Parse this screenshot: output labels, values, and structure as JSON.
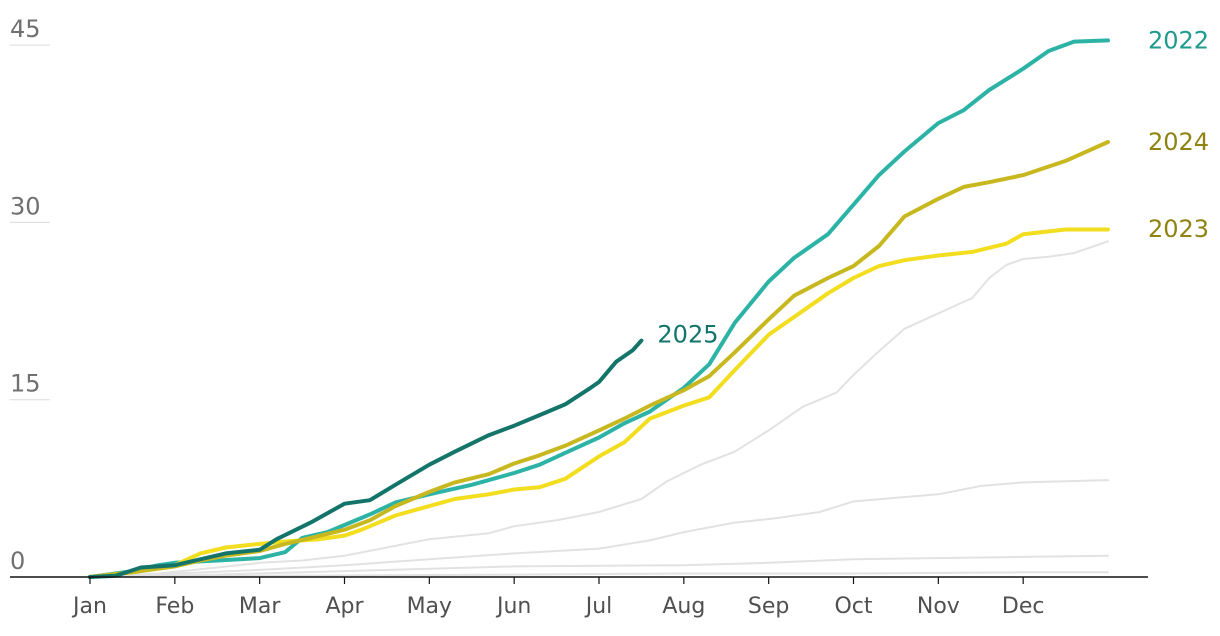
{
  "chart_data": {
    "type": "line",
    "x_categories": [
      "Jan",
      "Feb",
      "Mar",
      "Apr",
      "May",
      "Jun",
      "Jul",
      "Aug",
      "Sep",
      "Oct",
      "Nov",
      "Dec"
    ],
    "y_ticks": [
      {
        "value": 0,
        "label": "0"
      },
      {
        "value": 15,
        "label": "15"
      },
      {
        "value": 30,
        "label": "30"
      },
      {
        "value": 45,
        "label": "45"
      }
    ],
    "ylim": [
      0,
      47
    ],
    "series": [
      {
        "name": "",
        "color": "#e2e2e2",
        "values": [
          [
            0.0,
            0
          ],
          [
            2.0,
            0.1
          ],
          [
            5.0,
            0.2
          ],
          [
            7.0,
            0.3
          ],
          [
            9.0,
            0.3
          ],
          [
            11.0,
            0.4
          ],
          [
            12.0,
            0.4
          ]
        ]
      },
      {
        "name": "",
        "color": "#e2e2e2",
        "values": [
          [
            0.0,
            0
          ],
          [
            1.5,
            0.2
          ],
          [
            3.0,
            0.5
          ],
          [
            5.0,
            0.9
          ],
          [
            7.0,
            1.0
          ],
          [
            8.0,
            1.2
          ],
          [
            9.0,
            1.5
          ],
          [
            11.0,
            1.7
          ],
          [
            12.0,
            1.8
          ]
        ]
      },
      {
        "name": "",
        "color": "#e2e2e2",
        "values": [
          [
            0.0,
            0
          ],
          [
            1.0,
            0.3
          ],
          [
            2.0,
            0.6
          ],
          [
            3.0,
            1.0
          ],
          [
            4.0,
            1.5
          ],
          [
            5.0,
            2.0
          ],
          [
            6.0,
            2.4
          ],
          [
            6.6,
            3.1
          ],
          [
            7.0,
            3.8
          ],
          [
            7.6,
            4.6
          ],
          [
            8.0,
            4.9
          ],
          [
            8.6,
            5.5
          ],
          [
            9.0,
            6.4
          ],
          [
            10.0,
            7.0
          ],
          [
            10.5,
            7.7
          ],
          [
            11.0,
            8.0
          ],
          [
            12.0,
            8.2
          ]
        ]
      },
      {
        "name": "",
        "color": "#e2e2e2",
        "values": [
          [
            0.0,
            0
          ],
          [
            0.8,
            0.3
          ],
          [
            1.5,
            0.8
          ],
          [
            2.0,
            1.2
          ],
          [
            2.5,
            1.4
          ],
          [
            3.0,
            1.8
          ],
          [
            3.5,
            2.5
          ],
          [
            4.0,
            3.2
          ],
          [
            4.7,
            3.7
          ],
          [
            5.0,
            4.3
          ],
          [
            5.5,
            4.8
          ],
          [
            6.0,
            5.5
          ],
          [
            6.5,
            6.6
          ],
          [
            6.8,
            8.1
          ],
          [
            7.0,
            8.8
          ],
          [
            7.2,
            9.5
          ],
          [
            7.6,
            10.6
          ],
          [
            8.0,
            12.4
          ],
          [
            8.4,
            14.4
          ],
          [
            8.8,
            15.6
          ],
          [
            9.0,
            17.1
          ],
          [
            9.3,
            19.1
          ],
          [
            9.6,
            21.0
          ],
          [
            10.0,
            22.3
          ],
          [
            10.4,
            23.6
          ],
          [
            10.6,
            25.3
          ],
          [
            10.8,
            26.4
          ],
          [
            11.0,
            26.9
          ],
          [
            11.3,
            27.1
          ],
          [
            11.6,
            27.4
          ],
          [
            12.0,
            28.4
          ]
        ]
      },
      {
        "name": "2022",
        "color": "#2db3a6",
        "values": [
          [
            0.0,
            0
          ],
          [
            0.5,
            0.5
          ],
          [
            0.8,
            1.0
          ],
          [
            1.0,
            1.2
          ],
          [
            1.5,
            1.4
          ],
          [
            2.0,
            1.6
          ],
          [
            2.3,
            2.1
          ],
          [
            2.5,
            3.3
          ],
          [
            2.8,
            3.8
          ],
          [
            3.0,
            4.4
          ],
          [
            3.3,
            5.3
          ],
          [
            3.6,
            6.3
          ],
          [
            4.0,
            7.0
          ],
          [
            4.5,
            7.8
          ],
          [
            5.0,
            8.8
          ],
          [
            5.3,
            9.5
          ],
          [
            5.6,
            10.5
          ],
          [
            6.0,
            11.8
          ],
          [
            6.3,
            13.0
          ],
          [
            6.6,
            14.0
          ],
          [
            7.0,
            16.0
          ],
          [
            7.3,
            18.0
          ],
          [
            7.6,
            21.5
          ],
          [
            8.0,
            25.0
          ],
          [
            8.3,
            27.0
          ],
          [
            8.7,
            29.0
          ],
          [
            9.0,
            31.5
          ],
          [
            9.3,
            34.0
          ],
          [
            9.6,
            36.0
          ],
          [
            10.0,
            38.4
          ],
          [
            10.3,
            39.5
          ],
          [
            10.6,
            41.2
          ],
          [
            11.0,
            43.0
          ],
          [
            11.3,
            44.5
          ],
          [
            11.6,
            45.3
          ],
          [
            12.0,
            45.4
          ]
        ]
      },
      {
        "name": "2023",
        "color": "#f3dd1f",
        "values": [
          [
            0.0,
            0
          ],
          [
            0.5,
            0.4
          ],
          [
            1.0,
            1.0
          ],
          [
            1.3,
            2.0
          ],
          [
            1.6,
            2.5
          ],
          [
            2.0,
            2.8
          ],
          [
            2.3,
            3.0
          ],
          [
            2.7,
            3.2
          ],
          [
            3.0,
            3.5
          ],
          [
            3.2,
            4.0
          ],
          [
            3.6,
            5.2
          ],
          [
            4.0,
            6.0
          ],
          [
            4.3,
            6.6
          ],
          [
            4.7,
            7.0
          ],
          [
            5.0,
            7.4
          ],
          [
            5.3,
            7.6
          ],
          [
            5.6,
            8.3
          ],
          [
            6.0,
            10.2
          ],
          [
            6.3,
            11.4
          ],
          [
            6.6,
            13.4
          ],
          [
            7.0,
            14.5
          ],
          [
            7.3,
            15.2
          ],
          [
            7.6,
            17.5
          ],
          [
            8.0,
            20.5
          ],
          [
            8.3,
            22.0
          ],
          [
            8.7,
            24.0
          ],
          [
            9.0,
            25.3
          ],
          [
            9.3,
            26.3
          ],
          [
            9.6,
            26.8
          ],
          [
            10.0,
            27.2
          ],
          [
            10.4,
            27.5
          ],
          [
            10.8,
            28.2
          ],
          [
            11.0,
            29.0
          ],
          [
            11.5,
            29.4
          ],
          [
            12.0,
            29.4
          ]
        ]
      },
      {
        "name": "2024",
        "color": "#c8b81f",
        "values": [
          [
            0.0,
            0
          ],
          [
            0.5,
            0.4
          ],
          [
            1.0,
            0.9
          ],
          [
            1.3,
            1.4
          ],
          [
            1.6,
            1.8
          ],
          [
            2.0,
            2.2
          ],
          [
            2.3,
            2.8
          ],
          [
            2.6,
            3.3
          ],
          [
            3.0,
            4.0
          ],
          [
            3.3,
            4.8
          ],
          [
            3.6,
            6.0
          ],
          [
            4.0,
            7.2
          ],
          [
            4.3,
            8.0
          ],
          [
            4.7,
            8.7
          ],
          [
            5.0,
            9.6
          ],
          [
            5.3,
            10.3
          ],
          [
            5.6,
            11.1
          ],
          [
            6.0,
            12.4
          ],
          [
            6.3,
            13.4
          ],
          [
            6.6,
            14.5
          ],
          [
            7.0,
            15.8
          ],
          [
            7.3,
            17.0
          ],
          [
            7.6,
            19.0
          ],
          [
            8.0,
            21.8
          ],
          [
            8.3,
            23.8
          ],
          [
            8.7,
            25.3
          ],
          [
            9.0,
            26.3
          ],
          [
            9.3,
            28.0
          ],
          [
            9.6,
            30.5
          ],
          [
            10.0,
            32.0
          ],
          [
            10.3,
            33.0
          ],
          [
            10.6,
            33.4
          ],
          [
            11.0,
            34.0
          ],
          [
            11.5,
            35.2
          ],
          [
            12.0,
            36.8
          ]
        ]
      },
      {
        "name": "2025",
        "color": "#13756a",
        "values": [
          [
            0.0,
            0
          ],
          [
            0.3,
            0.1
          ],
          [
            0.6,
            0.8
          ],
          [
            1.0,
            1.0
          ],
          [
            1.3,
            1.5
          ],
          [
            1.6,
            2.0
          ],
          [
            2.0,
            2.3
          ],
          [
            2.2,
            3.2
          ],
          [
            2.6,
            4.6
          ],
          [
            3.0,
            6.2
          ],
          [
            3.3,
            6.5
          ],
          [
            3.6,
            7.8
          ],
          [
            4.0,
            9.5
          ],
          [
            4.3,
            10.6
          ],
          [
            4.7,
            12.0
          ],
          [
            5.0,
            12.8
          ],
          [
            5.3,
            13.7
          ],
          [
            5.6,
            14.6
          ],
          [
            5.9,
            16.0
          ],
          [
            6.0,
            16.5
          ],
          [
            6.2,
            18.2
          ],
          [
            6.4,
            19.2
          ],
          [
            6.5,
            20.0
          ]
        ]
      }
    ]
  }
}
